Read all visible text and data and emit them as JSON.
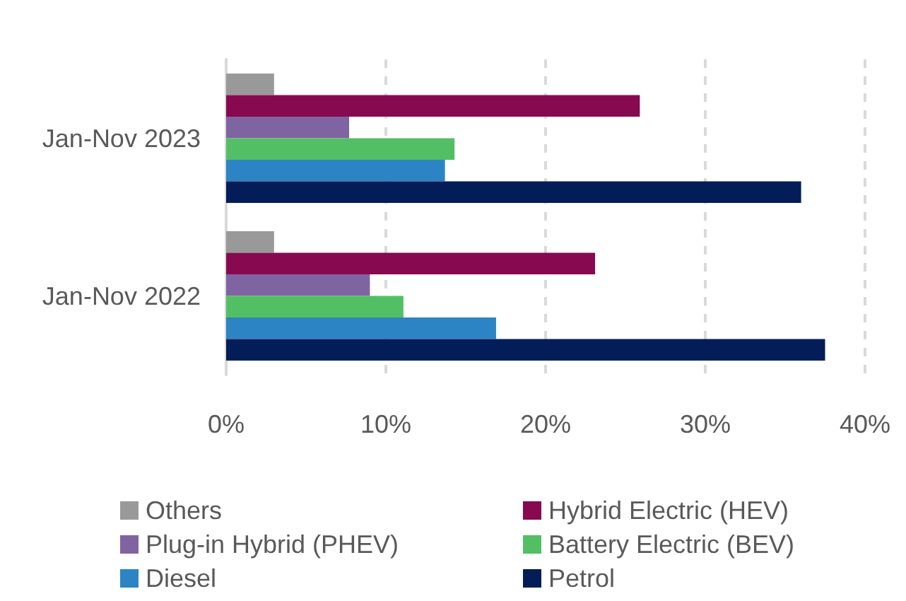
{
  "chart_data": {
    "type": "bar",
    "orientation": "horizontal",
    "categories": [
      "Jan-Nov 2023",
      "Jan-Nov 2022"
    ],
    "series": [
      {
        "name": "Others",
        "color": "#999999",
        "values": [
          3.0,
          3.0
        ]
      },
      {
        "name": "Hybrid Electric (HEV)",
        "color": "#87094f",
        "values": [
          25.9,
          23.1
        ]
      },
      {
        "name": "Plug-in Hybrid (PHEV)",
        "color": "#8064a2",
        "values": [
          7.7,
          9.0
        ]
      },
      {
        "name": "Battery Electric (BEV)",
        "color": "#53bf64",
        "values": [
          14.3,
          11.1
        ]
      },
      {
        "name": "Diesel",
        "color": "#2c84c4",
        "values": [
          13.7,
          16.9
        ]
      },
      {
        "name": "Petrol",
        "color": "#021d57",
        "values": [
          36.0,
          37.5
        ]
      }
    ],
    "xlim": [
      0,
      40
    ],
    "xticks": [
      {
        "value": 0,
        "label": "0%"
      },
      {
        "value": 10,
        "label": "10%"
      },
      {
        "value": 20,
        "label": "20%"
      },
      {
        "value": 30,
        "label": "30%"
      },
      {
        "value": 40,
        "label": "40%"
      }
    ],
    "grid": "x",
    "legend": "bottom"
  }
}
